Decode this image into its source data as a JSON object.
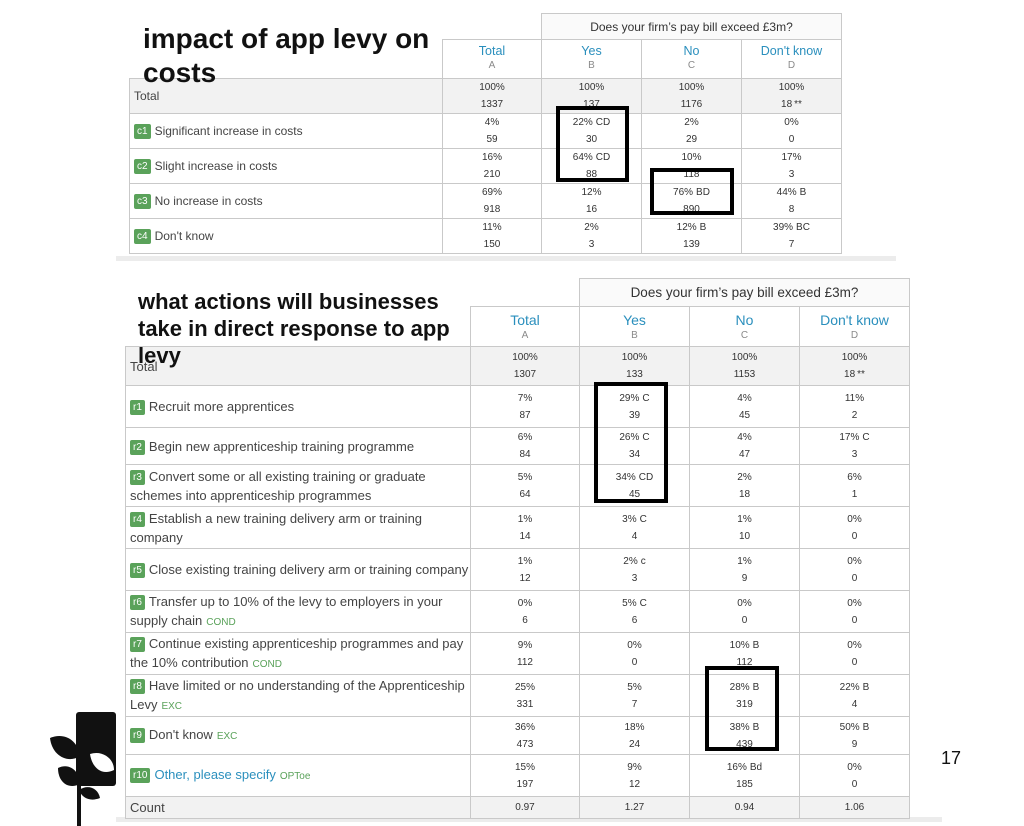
{
  "slide1": {
    "title": "impact of app levy on costs",
    "question": "Does your firm’s pay bill exceed £3m?",
    "columns": [
      {
        "label": "Total",
        "letter": "A"
      },
      {
        "label": "Yes",
        "letter": "B"
      },
      {
        "label": "No",
        "letter": "C"
      },
      {
        "label": "Don't know",
        "letter": "D"
      }
    ],
    "total_row": {
      "label": "Total",
      "cells": [
        {
          "pct": "100%",
          "sig": "",
          "n": "1337"
        },
        {
          "pct": "100%",
          "sig": "",
          "n": "137"
        },
        {
          "pct": "100%",
          "sig": "",
          "n": "1176"
        },
        {
          "pct": "100%",
          "sig": "",
          "n": "18",
          "flag": "**"
        }
      ]
    },
    "rows": [
      {
        "code": "c1",
        "label": "Significant increase in costs",
        "cells": [
          {
            "pct": "4%",
            "sig": "",
            "n": "59"
          },
          {
            "pct": "22%",
            "sig": "CD",
            "n": "30"
          },
          {
            "pct": "2%",
            "sig": "",
            "n": "29"
          },
          {
            "pct": "0%",
            "sig": "",
            "n": "0"
          }
        ]
      },
      {
        "code": "c2",
        "label": "Slight increase in costs",
        "cells": [
          {
            "pct": "16%",
            "sig": "",
            "n": "210"
          },
          {
            "pct": "64%",
            "sig": "CD",
            "n": "88"
          },
          {
            "pct": "10%",
            "sig": "",
            "n": "118"
          },
          {
            "pct": "17%",
            "sig": "",
            "n": "3"
          }
        ]
      },
      {
        "code": "c3",
        "label": "No increase in costs",
        "cells": [
          {
            "pct": "69%",
            "sig": "",
            "n": "918"
          },
          {
            "pct": "12%",
            "sig": "",
            "n": "16"
          },
          {
            "pct": "76%",
            "sig": "BD",
            "n": "890"
          },
          {
            "pct": "44%",
            "sig": "B",
            "n": "8"
          }
        ]
      },
      {
        "code": "c4",
        "label": "Don't know",
        "cells": [
          {
            "pct": "11%",
            "sig": "",
            "n": "150"
          },
          {
            "pct": "2%",
            "sig": "",
            "n": "3"
          },
          {
            "pct": "12%",
            "sig": "B",
            "n": "139"
          },
          {
            "pct": "39%",
            "sig": "BC",
            "n": "7"
          }
        ]
      }
    ]
  },
  "slide2": {
    "title": "what actions will businesses take in direct response to app levy",
    "question": "Does your firm’s pay bill exceed £3m?",
    "columns": [
      {
        "label": "Total",
        "letter": "A"
      },
      {
        "label": "Yes",
        "letter": "B"
      },
      {
        "label": "No",
        "letter": "C"
      },
      {
        "label": "Don't know",
        "letter": "D"
      }
    ],
    "total_row": {
      "label": "Total",
      "cells": [
        {
          "pct": "100%",
          "sig": "",
          "n": "1307"
        },
        {
          "pct": "100%",
          "sig": "",
          "n": "133"
        },
        {
          "pct": "100%",
          "sig": "",
          "n": "1153"
        },
        {
          "pct": "100%",
          "sig": "",
          "n": "18",
          "flag": "**"
        }
      ]
    },
    "rows": [
      {
        "code": "r1",
        "label": "Recruit more apprentices",
        "tag": "",
        "cells": [
          {
            "pct": "7%",
            "sig": "",
            "n": "87"
          },
          {
            "pct": "29%",
            "sig": "C",
            "n": "39"
          },
          {
            "pct": "4%",
            "sig": "",
            "n": "45"
          },
          {
            "pct": "11%",
            "sig": "",
            "n": "2"
          }
        ]
      },
      {
        "code": "r2",
        "label": "Begin new apprenticeship training programme",
        "tag": "",
        "cells": [
          {
            "pct": "6%",
            "sig": "",
            "n": "84"
          },
          {
            "pct": "26%",
            "sig": "C",
            "n": "34"
          },
          {
            "pct": "4%",
            "sig": "",
            "n": "47"
          },
          {
            "pct": "17%",
            "sig": "C",
            "n": "3"
          }
        ]
      },
      {
        "code": "r3",
        "label": "Convert some or all existing training or graduate schemes into apprenticeship programmes",
        "tag": "",
        "cells": [
          {
            "pct": "5%",
            "sig": "",
            "n": "64"
          },
          {
            "pct": "34%",
            "sig": "CD",
            "n": "45"
          },
          {
            "pct": "2%",
            "sig": "",
            "n": "18"
          },
          {
            "pct": "6%",
            "sig": "",
            "n": "1"
          }
        ]
      },
      {
        "code": "r4",
        "label": "Establish a new training delivery arm or training company",
        "tag": "",
        "cells": [
          {
            "pct": "1%",
            "sig": "",
            "n": "14"
          },
          {
            "pct": "3%",
            "sig": "C",
            "n": "4"
          },
          {
            "pct": "1%",
            "sig": "",
            "n": "10"
          },
          {
            "pct": "0%",
            "sig": "",
            "n": "0"
          }
        ]
      },
      {
        "code": "r5",
        "label": "Close existing training delivery arm or training company",
        "tag": "",
        "cells": [
          {
            "pct": "1%",
            "sig": "",
            "n": "12"
          },
          {
            "pct": "2%",
            "sig": "c",
            "n": "3"
          },
          {
            "pct": "1%",
            "sig": "",
            "n": "9"
          },
          {
            "pct": "0%",
            "sig": "",
            "n": "0"
          }
        ]
      },
      {
        "code": "r6",
        "label": "Transfer up to 10% of the levy to employers in your supply chain",
        "tag": "COND",
        "cells": [
          {
            "pct": "0%",
            "sig": "",
            "n": "6"
          },
          {
            "pct": "5%",
            "sig": "C",
            "n": "6"
          },
          {
            "pct": "0%",
            "sig": "",
            "n": "0"
          },
          {
            "pct": "0%",
            "sig": "",
            "n": "0"
          }
        ]
      },
      {
        "code": "r7",
        "label": "Continue existing apprenticeship programmes and pay the 10% contribution",
        "tag": "COND",
        "cells": [
          {
            "pct": "9%",
            "sig": "",
            "n": "112"
          },
          {
            "pct": "0%",
            "sig": "",
            "n": "0"
          },
          {
            "pct": "10%",
            "sig": "B",
            "n": "112"
          },
          {
            "pct": "0%",
            "sig": "",
            "n": "0"
          }
        ]
      },
      {
        "code": "r8",
        "label": "Have limited or no understanding of the Apprenticeship Levy",
        "tag": "EXC",
        "cells": [
          {
            "pct": "25%",
            "sig": "",
            "n": "331"
          },
          {
            "pct": "5%",
            "sig": "",
            "n": "7"
          },
          {
            "pct": "28%",
            "sig": "B",
            "n": "319"
          },
          {
            "pct": "22%",
            "sig": "B",
            "n": "4"
          }
        ]
      },
      {
        "code": "r9",
        "label": "Don't know",
        "tag": "EXC",
        "cells": [
          {
            "pct": "36%",
            "sig": "",
            "n": "473"
          },
          {
            "pct": "18%",
            "sig": "",
            "n": "24"
          },
          {
            "pct": "38%",
            "sig": "B",
            "n": "439"
          },
          {
            "pct": "50%",
            "sig": "B",
            "n": "9"
          }
        ]
      },
      {
        "code": "r10",
        "label": "Other, please specify",
        "tag": "OPToe",
        "cells": [
          {
            "pct": "15%",
            "sig": "",
            "n": "197"
          },
          {
            "pct": "9%",
            "sig": "",
            "n": "12"
          },
          {
            "pct": "16%",
            "sig": "Bd",
            "n": "185"
          },
          {
            "pct": "0%",
            "sig": "",
            "n": "0"
          }
        ]
      }
    ],
    "count_row": {
      "label": "Count",
      "values": [
        "0.97",
        "1.27",
        "0.94",
        "1.06"
      ]
    }
  },
  "page_number": "17",
  "colors": {
    "accent": "#2a8fbd",
    "code_badge": "#5aa25a",
    "significance": "#d9302c",
    "highlight_box": "#000000"
  },
  "logo": {
    "icon": "plant-logo-icon"
  }
}
